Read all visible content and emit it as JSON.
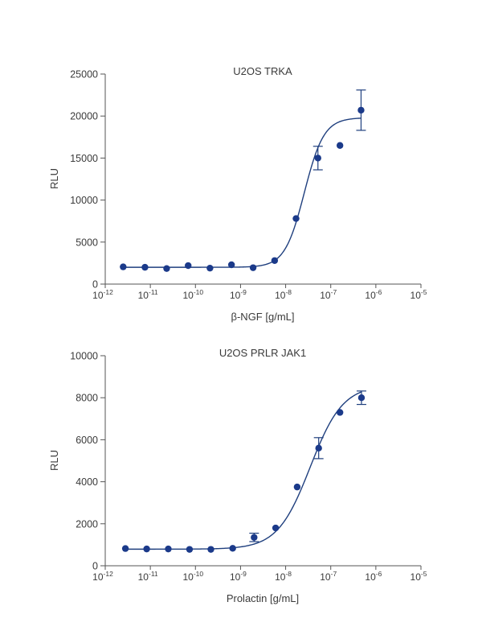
{
  "chart_data": [
    {
      "type": "scatter",
      "title": "U2OS TRKA",
      "xlabel": "β-NGF [g/mL]",
      "ylabel": "RLU",
      "x_scale": "log",
      "xlim": [
        1e-12,
        1e-05
      ],
      "ylim": [
        0,
        25000
      ],
      "x_tick_labels": [
        {
          "base": "10",
          "exp": "-12"
        },
        {
          "base": "10",
          "exp": "-11"
        },
        {
          "base": "10",
          "exp": "-10"
        },
        {
          "base": "10",
          "exp": "-9"
        },
        {
          "base": "10",
          "exp": "-8"
        },
        {
          "base": "10",
          "exp": "-7"
        },
        {
          "base": "10",
          "exp": "-6"
        },
        {
          "base": "10",
          "exp": "-5"
        }
      ],
      "y_ticks": [
        0,
        5000,
        10000,
        15000,
        20000,
        25000
      ],
      "y_tick_labels": [
        "0",
        "5000",
        "10000",
        "15000",
        "20000",
        "25000"
      ],
      "grid": false,
      "color": "#1b3a8a",
      "series": [
        {
          "x": [
            2.5e-12,
            7.6e-12,
            2.3e-11,
            6.9e-11,
            2.1e-10,
            6.3e-10,
            1.9e-09,
            5.7e-09,
            1.7e-08,
            5.2e-08,
            1.6e-07,
            4.7e-07
          ],
          "y": [
            2050,
            2000,
            1850,
            2200,
            1900,
            2300,
            1950,
            2800,
            7800,
            15000,
            16500,
            20700
          ],
          "error": [
            null,
            null,
            null,
            null,
            null,
            null,
            null,
            null,
            null,
            1400,
            null,
            2400
          ]
        }
      ],
      "fit": {
        "bottom": 2000,
        "top": 19800,
        "ec50": 2.6e-08,
        "hill": 2.0
      }
    },
    {
      "type": "scatter",
      "title": "U2OS PRLR JAK1",
      "xlabel": "Prolactin [g/mL]",
      "ylabel": "RLU",
      "x_scale": "log",
      "xlim": [
        1e-12,
        1e-05
      ],
      "ylim": [
        0,
        10000
      ],
      "x_tick_labels": [
        {
          "base": "10",
          "exp": "-12"
        },
        {
          "base": "10",
          "exp": "-11"
        },
        {
          "base": "10",
          "exp": "-10"
        },
        {
          "base": "10",
          "exp": "-9"
        },
        {
          "base": "10",
          "exp": "-8"
        },
        {
          "base": "10",
          "exp": "-7"
        },
        {
          "base": "10",
          "exp": "-6"
        },
        {
          "base": "10",
          "exp": "-5"
        }
      ],
      "y_ticks": [
        0,
        2000,
        4000,
        6000,
        8000,
        10000
      ],
      "y_tick_labels": [
        "0",
        "2000",
        "4000",
        "6000",
        "8000",
        "10000"
      ],
      "grid": false,
      "color": "#1b3a8a",
      "series": [
        {
          "x": [
            2.8e-12,
            8.3e-12,
            2.5e-11,
            7.4e-11,
            2.2e-10,
            6.7e-10,
            2e-09,
            6e-09,
            1.8e-08,
            5.4e-08,
            1.6e-07,
            4.8e-07
          ],
          "y": [
            820,
            800,
            800,
            780,
            780,
            830,
            1350,
            1800,
            3750,
            5600,
            7300,
            8000
          ],
          "error": [
            null,
            null,
            null,
            null,
            null,
            null,
            200,
            null,
            null,
            500,
            null,
            320
          ]
        }
      ],
      "fit": {
        "bottom": 790,
        "top": 8600,
        "ec50": 3.5e-08,
        "hill": 1.2
      }
    }
  ]
}
